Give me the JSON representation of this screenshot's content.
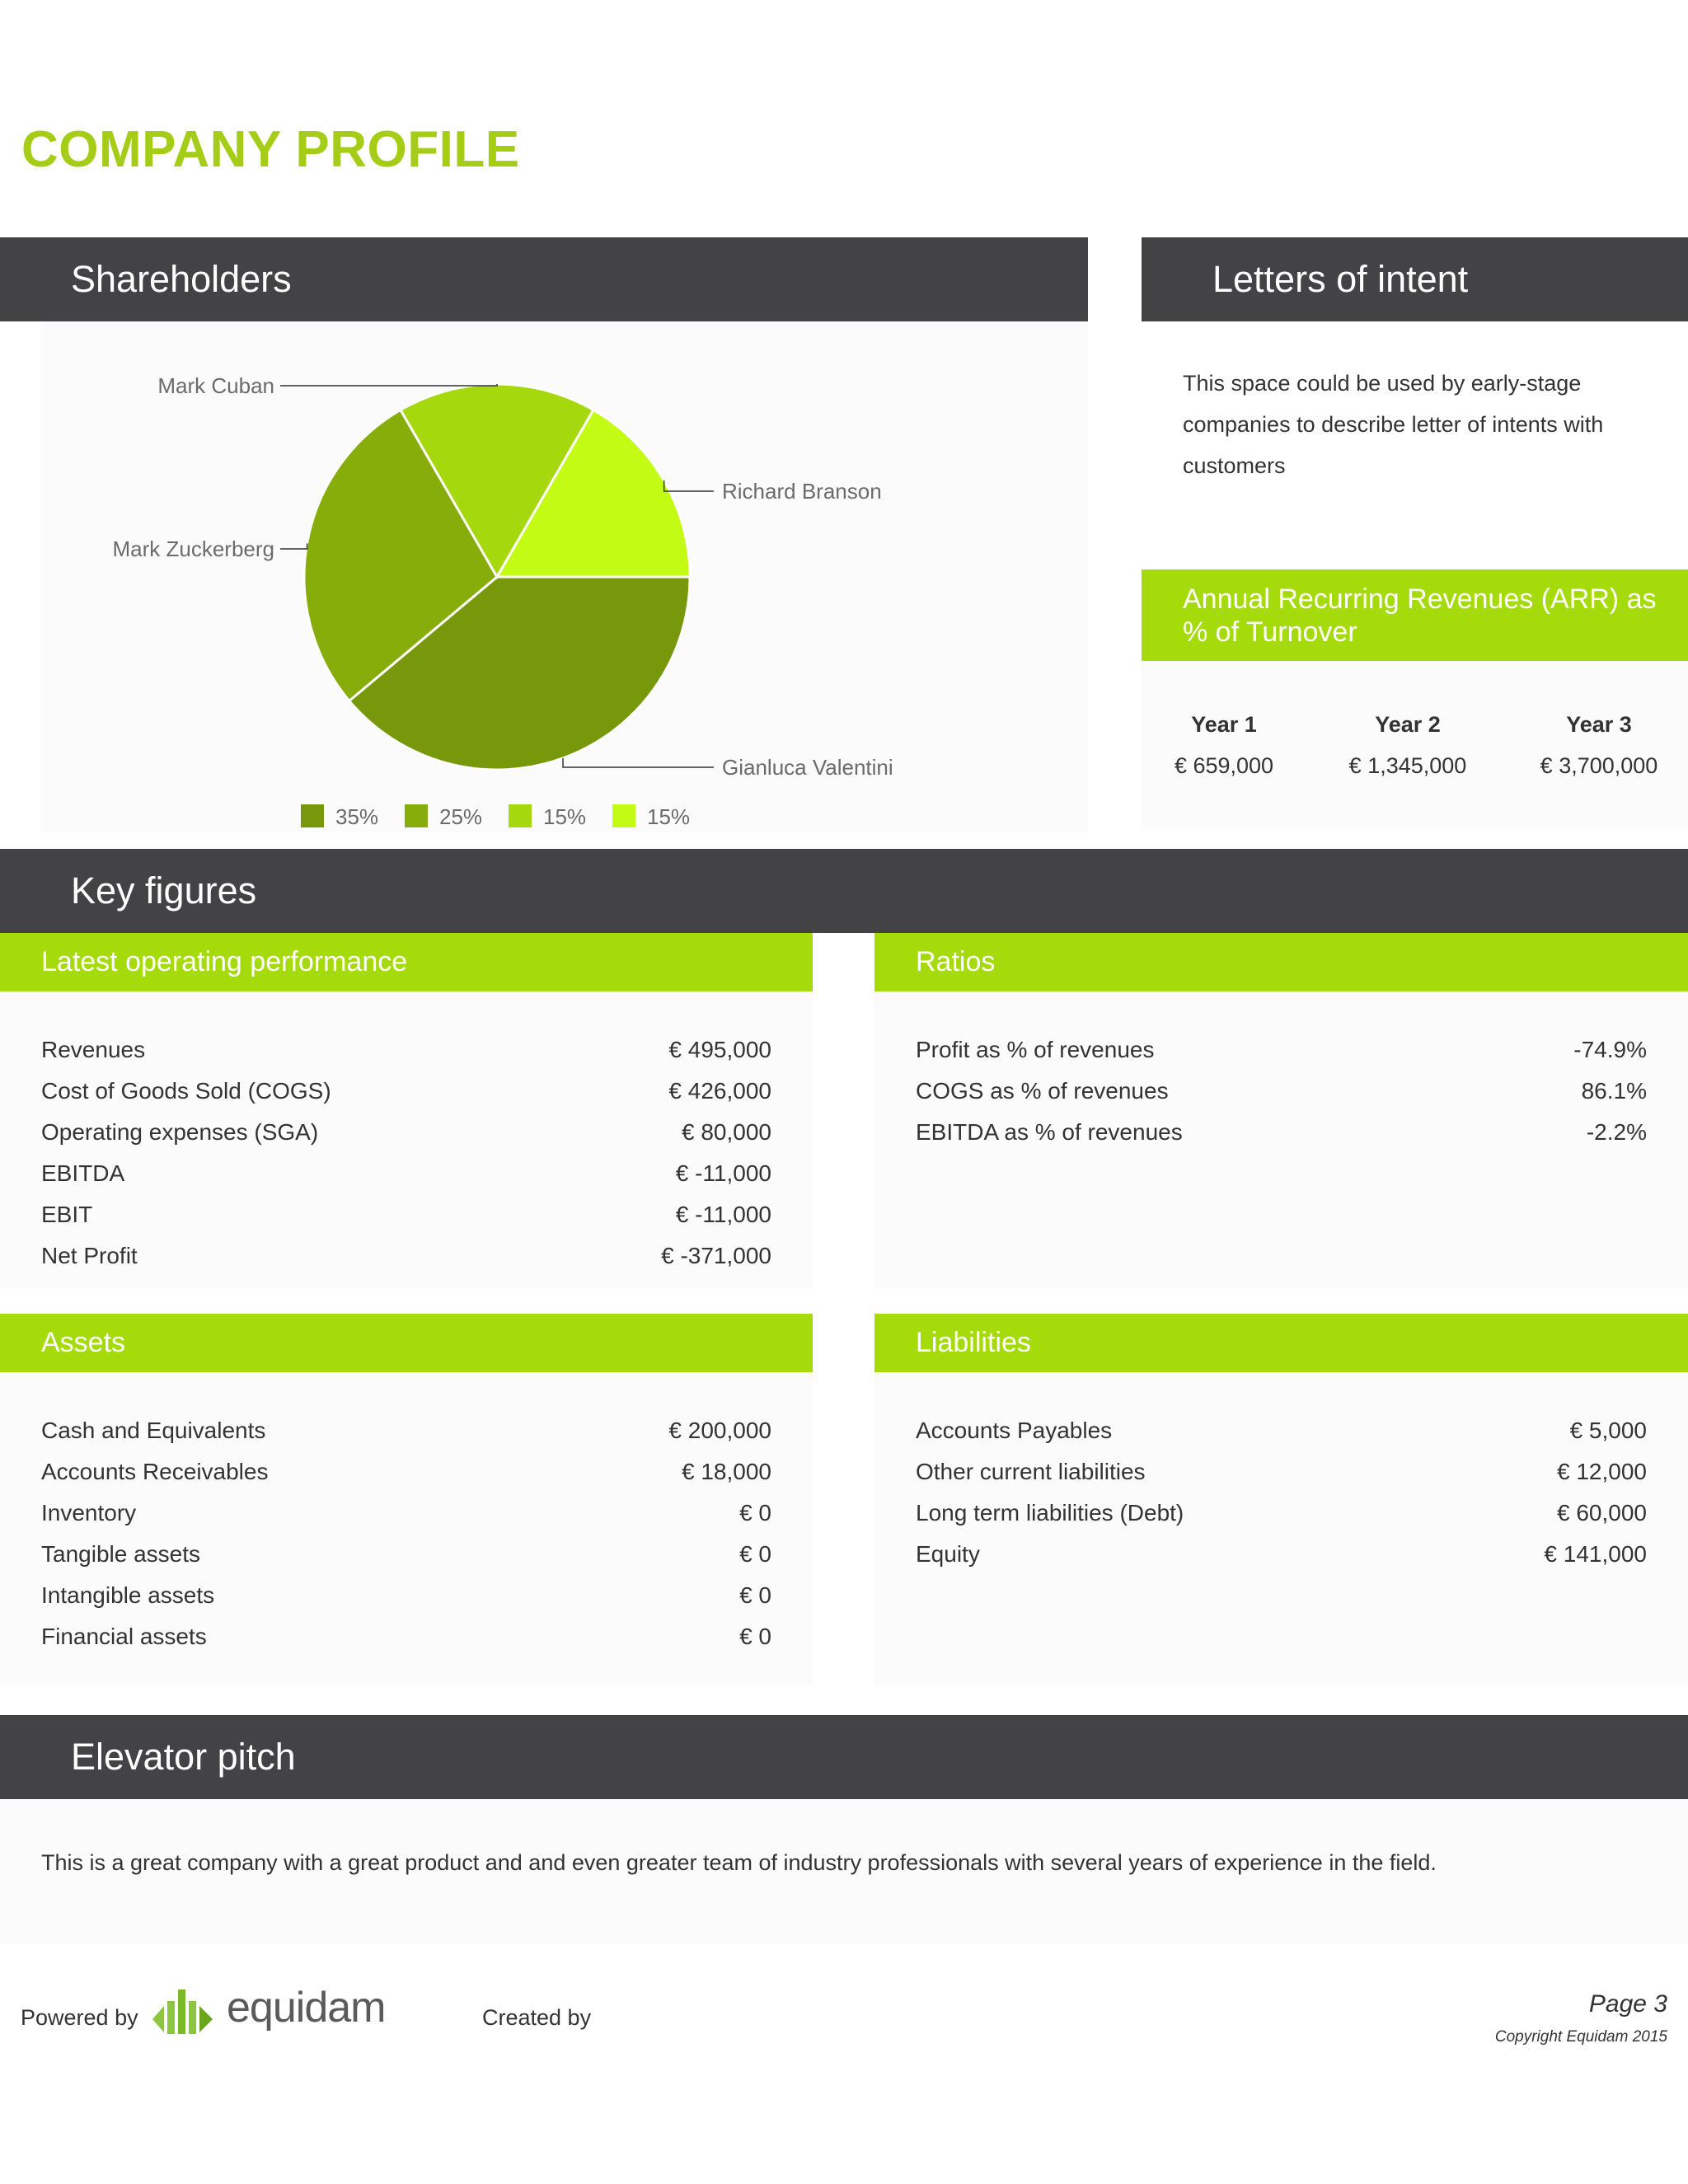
{
  "page": {
    "title": "COMPANY PROFILE"
  },
  "shareholders": {
    "header": "Shareholders"
  },
  "letters_of_intent": {
    "header": "Letters of intent",
    "text_lines": [
      "This space could be used by early-stage",
      "companies to describe letter of intents with",
      "customers"
    ]
  },
  "arr": {
    "header_lines": [
      "Annual Recurring Revenues (ARR) as",
      "% of Turnover"
    ],
    "columns": [
      {
        "label": "Year 1",
        "value": "€ 659,000"
      },
      {
        "label": "Year 2",
        "value": "€ 1,345,000"
      },
      {
        "label": "Year 3",
        "value": "€ 3,700,000"
      }
    ]
  },
  "key_figures": {
    "header": "Key figures"
  },
  "operating": {
    "header": "Latest operating performance",
    "rows": [
      {
        "label": "Revenues",
        "value": "€ 495,000"
      },
      {
        "label": "Cost of Goods Sold (COGS)",
        "value": "€ 426,000"
      },
      {
        "label": "Operating expenses (SGA)",
        "value": "€ 80,000"
      },
      {
        "label": "EBITDA",
        "value": "€ -11,000"
      },
      {
        "label": "EBIT",
        "value": "€ -11,000"
      },
      {
        "label": "Net Profit",
        "value": "€ -371,000"
      }
    ]
  },
  "ratios": {
    "header": "Ratios",
    "rows": [
      {
        "label": "Profit as % of revenues",
        "value": "-74.9%"
      },
      {
        "label": "COGS as % of revenues",
        "value": "86.1%"
      },
      {
        "label": "EBITDA as % of revenues",
        "value": "-2.2%"
      }
    ]
  },
  "assets": {
    "header": "Assets",
    "rows": [
      {
        "label": "Cash and Equivalents",
        "value": "€ 200,000"
      },
      {
        "label": "Accounts Receivables",
        "value": "€ 18,000"
      },
      {
        "label": "Inventory",
        "value": "€ 0"
      },
      {
        "label": "Tangible assets",
        "value": "€ 0"
      },
      {
        "label": "Intangible assets",
        "value": "€ 0"
      },
      {
        "label": "Financial assets",
        "value": "€ 0"
      }
    ]
  },
  "liabilities": {
    "header": "Liabilities",
    "rows": [
      {
        "label": "Accounts Payables",
        "value": "€ 5,000"
      },
      {
        "label": "Other current liabilities",
        "value": "€ 12,000"
      },
      {
        "label": "Long term liabilities (Debt)",
        "value": "€ 60,000"
      },
      {
        "label": "Equity",
        "value": "€ 141,000"
      }
    ]
  },
  "elevator_pitch": {
    "header": "Elevator pitch",
    "text": "This is a great company with a great product and and even greater team of industry professionals with several years of experience in the field."
  },
  "footer": {
    "powered_by": "Powered by",
    "brand": "equidam",
    "created_by": "Created by",
    "page": "Page 3",
    "copyright": "Copyright Equidam 2015"
  },
  "colors": {
    "accent": "#a5cd17",
    "dark": "#434244",
    "green_bar": "#a5db0a"
  },
  "chart_data": {
    "type": "pie",
    "slices": [
      {
        "name": "Gianluca Valentini",
        "value": 35,
        "label": "35%",
        "color": "#76980a"
      },
      {
        "name": "Mark Zuckerberg",
        "value": 25,
        "label": "25%",
        "color": "#87ad0b"
      },
      {
        "name": "Mark Cuban",
        "value": 15,
        "label": "15%",
        "color": "#a5d80d"
      },
      {
        "name": "Richard Branson",
        "value": 15,
        "label": "15%",
        "color": "#c3fb15"
      }
    ],
    "legend": [
      {
        "label": "35%",
        "color": "#76980a"
      },
      {
        "label": "25%",
        "color": "#87ad0b"
      },
      {
        "label": "15%",
        "color": "#a5d80d"
      },
      {
        "label": "15%",
        "color": "#c3fb15"
      }
    ],
    "legend_position": "bottom"
  }
}
